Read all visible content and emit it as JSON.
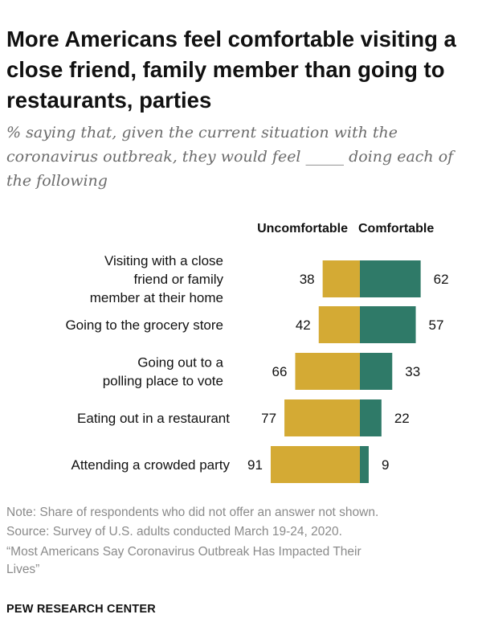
{
  "title": "More Americans feel comfortable visiting a close friend, family member than going to restaurants, parties",
  "subtitle": "% saying that, given the current situation with the coronavirus outbreak, they would feel _____ doing each of the following",
  "colors": {
    "uncomfortable": "#d4aa34",
    "comfortable": "#2f7a68"
  },
  "chart_data": {
    "type": "bar",
    "orientation": "horizontal-diverging",
    "categories": [
      "Visiting with a close friend or family member at their home",
      "Going to the grocery store",
      "Going out to a polling place to vote",
      "Eating out in a restaurant",
      "Attending a crowded party"
    ],
    "category_lines": [
      [
        "Visiting with a close",
        "friend or family",
        "member at their home"
      ],
      [
        "Going to the grocery store"
      ],
      [
        "Going out to a",
        "polling place to vote"
      ],
      [
        "Eating out in a restaurant"
      ],
      [
        "Attending a crowded party"
      ]
    ],
    "series": [
      {
        "name": "Uncomfortable",
        "values": [
          38,
          42,
          66,
          77,
          91
        ]
      },
      {
        "name": "Comfortable",
        "values": [
          62,
          57,
          33,
          22,
          9
        ]
      }
    ],
    "grid": false
  },
  "footer": {
    "note": "Note: Share of respondents who did not offer an answer not shown.",
    "source": "Source: Survey of U.S. adults conducted March 19-24, 2020.",
    "report_line1": "“Most Americans Say Coronavirus Outbreak Has Impacted Their",
    "report_line2": "Lives”",
    "brand": "PEW RESEARCH CENTER"
  }
}
